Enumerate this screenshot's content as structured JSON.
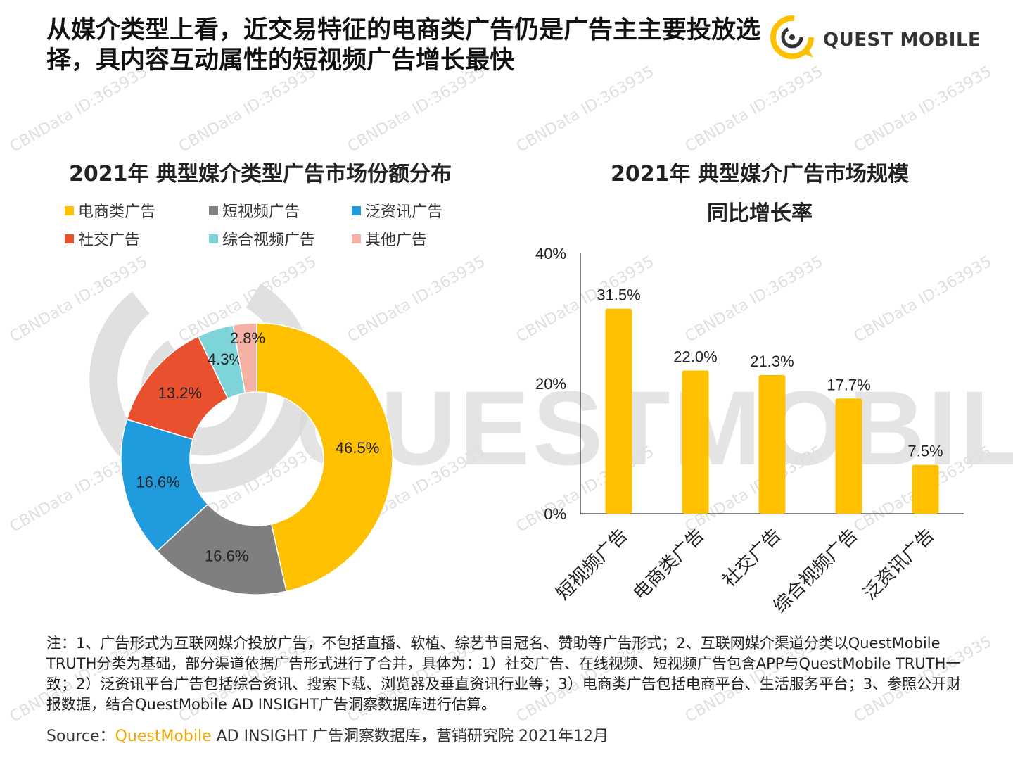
{
  "headline": "从媒介类型上看，近交易特征的电商类广告仍是广告主主要投放选择，具内容互动属性的短视频广告增长最快",
  "logo": {
    "text": "QUEST MOBILE",
    "icon": "quest-mobile-logo-icon"
  },
  "watermark": {
    "text": "CBNData ID:363935",
    "big_text": "QUESTMOBILE"
  },
  "colors": {
    "yellow": "#FFC000",
    "gray": "#7F7F7F",
    "blue": "#1F9BDE",
    "red": "#E8502E",
    "teal": "#7DD4D9",
    "pink": "#F5B1A5"
  },
  "chart_data": [
    {
      "type": "pie",
      "title": "2021年 典型媒介类型广告市场份额分布",
      "categories": [
        "电商类广告",
        "短视频广告",
        "泛资讯广告",
        "社交广告",
        "综合视频广告",
        "其他广告"
      ],
      "values": [
        46.5,
        16.6,
        16.6,
        13.2,
        4.3,
        2.8
      ],
      "labels": [
        "46.5%",
        "16.6%",
        "16.6%",
        "13.2%",
        "4.3%",
        "2.8%"
      ],
      "colors": [
        "#FFC000",
        "#7F7F7F",
        "#1F9BDE",
        "#E8502E",
        "#7DD4D9",
        "#F5B1A5"
      ],
      "donut": true,
      "legend_position": "top"
    },
    {
      "type": "bar",
      "title": "2021年 典型媒介广告市场规模",
      "subtitle": "同比增长率",
      "categories": [
        "短视频广告",
        "电商类广告",
        "社交广告",
        "综合视频广告",
        "泛资讯广告"
      ],
      "values": [
        31.5,
        22.0,
        21.3,
        17.7,
        7.5
      ],
      "labels": [
        "31.5%",
        "22.0%",
        "21.3%",
        "17.7%",
        "7.5%"
      ],
      "yticks": [
        "0%",
        "20%",
        "40%"
      ],
      "ytick_values": [
        0,
        20,
        40
      ],
      "ylim": [
        0,
        40
      ],
      "color": "#FFC000",
      "grid": false
    }
  ],
  "note": "注：1、广告形式为互联网媒介投放广告，不包括直播、软植、综艺节目冠名、赞助等广告形式；2、互联网媒介渠道分类以QuestMobile TRUTH分类为基础，部分渠道依据广告形式进行了合并，具体为：1）社交广告、在线视频、短视频广告包含APP与QuestMobile TRUTH一致；2）泛资讯平台广告包括综合资讯、搜索下载、浏览器及垂直资讯行业等；3）电商类广告包括电商平台、生活服务平台；3、参照公开财报数据，结合QuestMobile AD INSIGHT广告洞察数据库进行估算。",
  "source": {
    "prefix": "Source：",
    "brand": "QuestMobile",
    "rest": " AD INSIGHT 广告洞察数据库，营销研究院 2021年12月"
  }
}
